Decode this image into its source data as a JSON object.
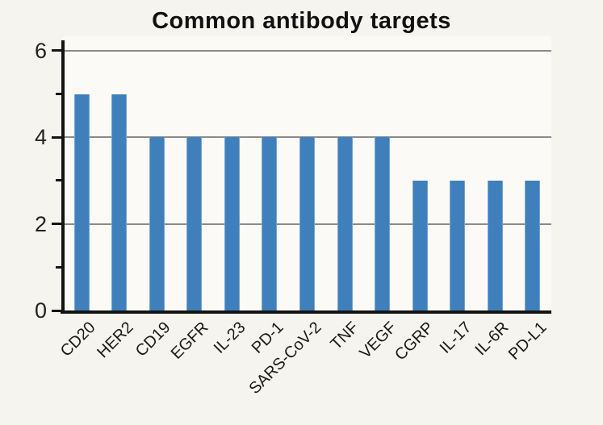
{
  "title": "Common antibody targets",
  "chart_data": {
    "type": "bar",
    "title": "Common antibody targets",
    "categories": [
      "CD20",
      "HER2",
      "CD19",
      "EGFR",
      "IL-23",
      "PD-1",
      "SARS-CoV-2",
      "TNF",
      "VEGF",
      "CGRP",
      "IL-17",
      "IL-6R",
      "PD-L1"
    ],
    "values": [
      5,
      5,
      4,
      4,
      4,
      4,
      4,
      4,
      4,
      3,
      3,
      3,
      3
    ],
    "xlabel": "",
    "ylabel": "",
    "ylim": [
      0,
      6
    ],
    "yticks_major": [
      0,
      2,
      4,
      6
    ],
    "yticks_minor": [
      1,
      3,
      5
    ],
    "grid": "horizontal gridlines at major ticks (2,4,6)",
    "legend_position": "none",
    "x_label_rotation_deg": 45,
    "colors": {
      "bar": "#3f80bc",
      "bar_edge": "#74a6d1",
      "background": "#f5f4ee",
      "plot_background": "#fbfaf7",
      "grid": "#8a8a8a",
      "axis": "#141414",
      "text": "#111111"
    }
  }
}
